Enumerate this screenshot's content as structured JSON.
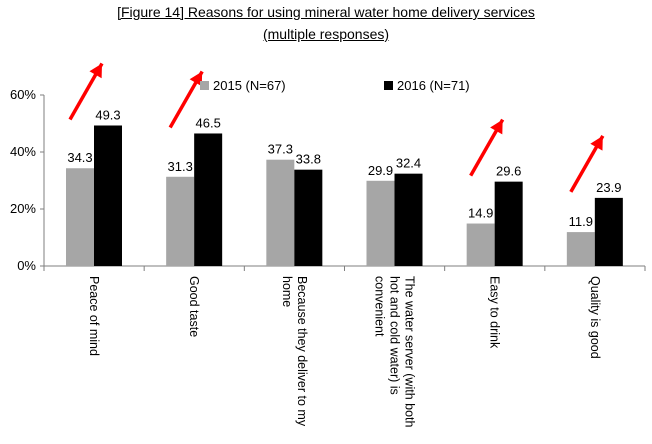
{
  "chart_data": {
    "type": "bar",
    "title": "[Figure 14] Reasons for using mineral water home delivery services",
    "subtitle": "(multiple responses)",
    "xlabel": "",
    "ylabel": "",
    "ylim": [
      0,
      60
    ],
    "yticks": [
      0,
      20,
      40,
      60
    ],
    "ytick_labels": [
      "0%",
      "20%",
      "40%",
      "60%"
    ],
    "grid": false,
    "legend_position": "top",
    "categories": [
      [
        "Peace of mind"
      ],
      [
        "Good taste"
      ],
      [
        "Because they deliver to my",
        "home"
      ],
      [
        "The water server (with both",
        "hot and cold water) is",
        "convenient"
      ],
      [
        "Easy to drink"
      ],
      [
        "Quality is good"
      ]
    ],
    "series": [
      {
        "name": "2015 (N=67)",
        "color": "#a6a6a6",
        "values": [
          34.3,
          31.3,
          37.3,
          29.9,
          14.9,
          11.9
        ]
      },
      {
        "name": "2016 (N=71)",
        "color": "#000000",
        "values": [
          49.3,
          46.5,
          33.8,
          32.4,
          29.6,
          23.9
        ]
      }
    ],
    "annotations": {
      "type": "up-arrow",
      "color": "#ff0000",
      "categories": [
        0,
        1,
        4,
        5
      ]
    }
  }
}
